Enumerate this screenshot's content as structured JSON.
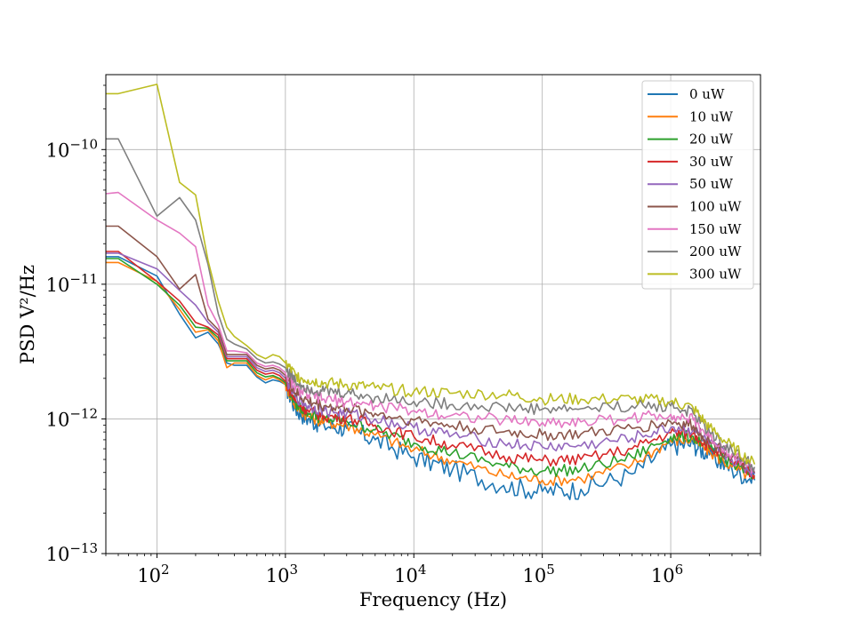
{
  "chart_data": {
    "type": "line",
    "title": "",
    "xlabel": "Frequency (Hz)",
    "ylabel": "PSD V²/Hz",
    "xscale": "log",
    "yscale": "log",
    "xlim": [
      40,
      5000000
    ],
    "ylim": [
      1e-13,
      3.6e-10
    ],
    "grid": true,
    "legend_position": "top-right",
    "x_tick_labels": [
      {
        "value": 100,
        "base": "10",
        "exp": "2"
      },
      {
        "value": 1000,
        "base": "10",
        "exp": "3"
      },
      {
        "value": 10000,
        "base": "10",
        "exp": "4"
      },
      {
        "value": 100000,
        "base": "10",
        "exp": "5"
      },
      {
        "value": 1000000,
        "base": "10",
        "exp": "6"
      }
    ],
    "y_tick_labels": [
      {
        "value": 1e-13,
        "base": "10",
        "exp": "−13"
      },
      {
        "value": 1e-12,
        "base": "10",
        "exp": "−12"
      },
      {
        "value": 1e-11,
        "base": "10",
        "exp": "−11"
      },
      {
        "value": 1e-10,
        "base": "10",
        "exp": "−10"
      }
    ],
    "x": [
      40,
      50,
      100,
      150,
      200,
      250,
      300,
      350,
      400,
      500,
      600,
      700,
      800,
      900,
      1000,
      1200,
      1500,
      2000,
      3000,
      5000,
      10000,
      20000,
      50000,
      100000,
      200000,
      500000,
      1000000,
      1500000,
      2000000,
      3000000,
      4500000
    ],
    "series": [
      {
        "name": "0 uW",
        "color": "#1f77b4",
        "values": [
          1.6e-11,
          1.6e-11,
          1.15e-11,
          6e-12,
          4e-12,
          4.4e-12,
          3.6e-12,
          2.6e-12,
          2.5e-12,
          2.5e-12,
          2.05e-12,
          1.85e-12,
          1.95e-12,
          1.9e-12,
          1.8e-12,
          1.2e-12,
          1e-12,
          9e-13,
          8.5e-13,
          7e-13,
          5.2e-13,
          4.2e-13,
          3.2e-13,
          2.9e-13,
          3e-13,
          3.9e-13,
          6.3e-13,
          6.5e-13,
          5.4e-13,
          4.2e-13,
          3.5e-13
        ]
      },
      {
        "name": "10 uW",
        "color": "#ff7f0e",
        "values": [
          1.45e-11,
          1.45e-11,
          1.05e-11,
          6.5e-12,
          4.4e-12,
          4.6e-12,
          3.8e-12,
          2.4e-12,
          2.6e-12,
          2.6e-12,
          2.1e-12,
          1.95e-12,
          2.05e-12,
          1.95e-12,
          1.8e-12,
          1.25e-12,
          1.05e-12,
          9.5e-13,
          9e-13,
          7.6e-13,
          5.9e-13,
          4.9e-13,
          3.8e-13,
          3.5e-13,
          3.6e-13,
          4.6e-13,
          6.9e-13,
          7e-13,
          5.7e-13,
          4.4e-13,
          3.6e-13
        ]
      },
      {
        "name": "20 uW",
        "color": "#2ca02c",
        "values": [
          1.55e-11,
          1.55e-11,
          1e-11,
          7e-12,
          4.8e-12,
          4.7e-12,
          4e-12,
          2.7e-12,
          2.7e-12,
          2.7e-12,
          2.2e-12,
          2.05e-12,
          2.1e-12,
          2e-12,
          1.85e-12,
          1.3e-12,
          1.1e-12,
          1e-12,
          9.6e-13,
          8.3e-13,
          6.6e-13,
          5.6e-13,
          4.5e-13,
          4.1e-13,
          4.2e-13,
          5.2e-13,
          7.4e-13,
          7.4e-13,
          6e-13,
          4.6e-13,
          3.7e-13
        ]
      },
      {
        "name": "30 uW",
        "color": "#d62728",
        "values": [
          1.75e-11,
          1.75e-11,
          1.05e-11,
          7.5e-12,
          5.2e-12,
          4.8e-12,
          4.2e-12,
          2.8e-12,
          2.8e-12,
          2.8e-12,
          2.3e-12,
          2.15e-12,
          2.2e-12,
          2.1e-12,
          1.9e-12,
          1.35e-12,
          1.15e-12,
          1.05e-12,
          1.02e-12,
          9e-13,
          7.4e-13,
          6.4e-13,
          5.3e-13,
          4.9e-13,
          5e-13,
          6e-13,
          7.9e-13,
          7.8e-13,
          6.2e-13,
          4.8e-13,
          3.8e-13
        ]
      },
      {
        "name": "50 uW",
        "color": "#9467bd",
        "values": [
          1.7e-11,
          1.7e-11,
          1.3e-11,
          9e-12,
          7e-12,
          5.2e-12,
          4.4e-12,
          2.9e-12,
          2.9e-12,
          2.9e-12,
          2.4e-12,
          2.25e-12,
          2.3e-12,
          2.2e-12,
          2e-12,
          1.45e-12,
          1.25e-12,
          1.15e-12,
          1.1e-12,
          1e-12,
          8.6e-13,
          7.6e-13,
          6.6e-13,
          6.2e-13,
          6.3e-13,
          7.2e-13,
          8.6e-13,
          8.3e-13,
          6.5e-13,
          5e-13,
          3.9e-13
        ]
      },
      {
        "name": "100 uW",
        "color": "#8c564b",
        "values": [
          2.7e-11,
          2.7e-11,
          1.6e-11,
          9.2e-12,
          1.18e-11,
          5.5e-12,
          4.6e-12,
          3e-12,
          3e-12,
          3e-12,
          2.5e-12,
          2.35e-12,
          2.4e-12,
          2.3e-12,
          2.1e-12,
          1.55e-12,
          1.35e-12,
          1.25e-12,
          1.2e-12,
          1.1e-12,
          9.8e-13,
          8.9e-13,
          8e-13,
          7.6e-13,
          7.7e-13,
          8.5e-13,
          9.5e-13,
          8.9e-13,
          6.8e-13,
          5.2e-13,
          4e-13
        ]
      },
      {
        "name": "150 uW",
        "color": "#e377c2",
        "values": [
          4.7e-11,
          4.8e-11,
          3e-11,
          2.4e-11,
          1.9e-11,
          7e-12,
          5e-12,
          3.2e-12,
          3.2e-12,
          3.1e-12,
          2.6e-12,
          2.45e-12,
          2.5e-12,
          2.4e-12,
          2.2e-12,
          1.7e-12,
          1.5e-12,
          1.4e-12,
          1.35e-12,
          1.25e-12,
          1.15e-12,
          1.07e-12,
          9.8e-13,
          9.4e-13,
          9.5e-13,
          1.02e-12,
          1.08e-12,
          9.8e-13,
          7.3e-13,
          5.5e-13,
          4.2e-13
        ]
      },
      {
        "name": "200 uW",
        "color": "#7f7f7f",
        "values": [
          1.2e-10,
          1.2e-10,
          3.2e-11,
          4.4e-11,
          3e-11,
          1.4e-11,
          6e-12,
          3.9e-12,
          3.6e-12,
          3.3e-12,
          2.8e-12,
          2.6e-12,
          2.65e-12,
          2.55e-12,
          2.4e-12,
          1.9e-12,
          1.7e-12,
          1.6e-12,
          1.55e-12,
          1.45e-12,
          1.35e-12,
          1.28e-12,
          1.22e-12,
          1.18e-12,
          1.19e-12,
          1.25e-12,
          1.25e-12,
          1.1e-12,
          8e-13,
          5.8e-13,
          4.4e-13
        ]
      },
      {
        "name": "300 uW",
        "color": "#bcbd22",
        "values": [
          2.6e-10,
          2.6e-10,
          3.05e-10,
          5.7e-11,
          4.6e-11,
          1.5e-11,
          7.5e-12,
          4.8e-12,
          4.1e-12,
          3.5e-12,
          3e-12,
          2.8e-12,
          3e-12,
          2.9e-12,
          2.6e-12,
          2.1e-12,
          1.95e-12,
          1.85e-12,
          1.8e-12,
          1.7e-12,
          1.6e-12,
          1.55e-12,
          1.52e-12,
          1.4e-12,
          1.4e-12,
          1.4e-12,
          1.35e-12,
          1.2e-12,
          8.6e-13,
          6.2e-13,
          4.6e-13
        ]
      }
    ]
  }
}
